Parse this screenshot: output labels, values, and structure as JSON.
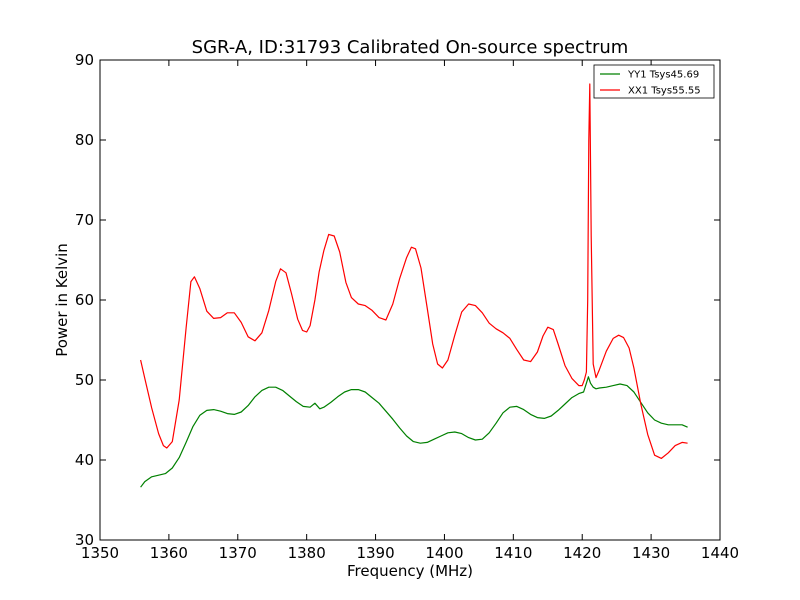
{
  "chart_data": {
    "type": "line",
    "title": "SGR-A, ID:31793 Calibrated On-source spectrum",
    "xlabel": "Frequency (MHz)",
    "ylabel": "Power in Kelvin",
    "xlim": [
      1350,
      1440
    ],
    "ylim": [
      30,
      90
    ],
    "xticks": [
      "1350",
      "1360",
      "1370",
      "1380",
      "1390",
      "1400",
      "1410",
      "1420",
      "1430",
      "1440"
    ],
    "yticks": [
      "30",
      "40",
      "50",
      "60",
      "70",
      "80",
      "90"
    ],
    "grid": false,
    "legend_position": "top-right",
    "series": [
      {
        "name": "YY1 Tsys45.69",
        "color": "#008000",
        "x": [
          1355.9,
          1356.5,
          1357.5,
          1358.5,
          1359.5,
          1360.5,
          1361.5,
          1362.5,
          1363.5,
          1364.5,
          1365.5,
          1366.5,
          1367.5,
          1368.5,
          1369.5,
          1370.5,
          1371.5,
          1372.5,
          1373.5,
          1374.5,
          1375.5,
          1376.5,
          1377.5,
          1378.5,
          1379.5,
          1380.5,
          1381.2,
          1381.9,
          1382.5,
          1383.5,
          1384.5,
          1385.5,
          1386.5,
          1387.5,
          1388.5,
          1389.5,
          1390.5,
          1391.5,
          1392.5,
          1393.5,
          1394.5,
          1395.5,
          1396.5,
          1397.5,
          1398.5,
          1399.5,
          1400.5,
          1401.5,
          1402.5,
          1403.5,
          1404.5,
          1405.5,
          1406.5,
          1407.5,
          1408.5,
          1409.5,
          1410.5,
          1411.5,
          1412.5,
          1413.5,
          1414.5,
          1415.5,
          1416.5,
          1417.5,
          1418.5,
          1419.5,
          1420.2,
          1420.6,
          1420.9,
          1421.2,
          1421.6,
          1422.0,
          1422.5,
          1423.5,
          1424.5,
          1425.5,
          1426.5,
          1427.5,
          1428.5,
          1429.5,
          1430.5,
          1431.5,
          1432.5,
          1433.5,
          1434.5,
          1435.3
        ],
        "y": [
          36.6,
          37.3,
          37.9,
          38.1,
          38.3,
          39.0,
          40.3,
          42.2,
          44.2,
          45.6,
          46.2,
          46.3,
          46.1,
          45.8,
          45.7,
          46.0,
          46.8,
          47.9,
          48.7,
          49.1,
          49.1,
          48.7,
          48.0,
          47.3,
          46.7,
          46.6,
          47.1,
          46.4,
          46.6,
          47.2,
          47.9,
          48.5,
          48.8,
          48.8,
          48.5,
          47.8,
          47.1,
          46.1,
          45.1,
          44.0,
          43.0,
          42.3,
          42.1,
          42.2,
          42.6,
          43.0,
          43.4,
          43.5,
          43.3,
          42.8,
          42.5,
          42.6,
          43.4,
          44.6,
          45.9,
          46.6,
          46.7,
          46.3,
          45.7,
          45.3,
          45.2,
          45.5,
          46.2,
          47.0,
          47.8,
          48.3,
          48.5,
          49.6,
          50.4,
          49.6,
          49.1,
          48.9,
          49.0,
          49.1,
          49.3,
          49.5,
          49.3,
          48.5,
          47.2,
          45.9,
          45.0,
          44.6,
          44.4,
          44.4,
          44.4,
          44.1
        ]
      },
      {
        "name": "XX1 Tsys55.55",
        "color": "#ff0000",
        "x": [
          1355.9,
          1356.5,
          1357.5,
          1358.5,
          1359.2,
          1359.7,
          1360.5,
          1361.5,
          1362.5,
          1363.2,
          1363.7,
          1364.5,
          1365.5,
          1366.5,
          1367.5,
          1368.5,
          1369.5,
          1370.5,
          1371.5,
          1372.5,
          1373.5,
          1374.5,
          1375.5,
          1376.2,
          1377.0,
          1377.8,
          1378.7,
          1379.4,
          1380.0,
          1380.5,
          1381.2,
          1381.8,
          1382.5,
          1383.2,
          1384.0,
          1384.8,
          1385.7,
          1386.5,
          1387.5,
          1388.5,
          1389.5,
          1390.5,
          1391.5,
          1392.5,
          1393.5,
          1394.5,
          1395.2,
          1395.8,
          1396.6,
          1397.5,
          1398.3,
          1399.0,
          1399.7,
          1400.5,
          1401.5,
          1402.5,
          1403.5,
          1404.5,
          1405.5,
          1406.5,
          1407.5,
          1408.5,
          1409.5,
          1410.5,
          1411.5,
          1412.5,
          1413.5,
          1414.3,
          1415.0,
          1415.8,
          1416.5,
          1417.5,
          1418.5,
          1419.5,
          1420.0,
          1420.3,
          1420.6,
          1420.8,
          1420.95,
          1421.1,
          1421.3,
          1421.6,
          1422.0,
          1422.5,
          1423.5,
          1424.5,
          1425.3,
          1426.0,
          1426.8,
          1427.5,
          1428.5,
          1429.5,
          1430.5,
          1431.5,
          1432.5,
          1433.5,
          1434.5,
          1435.3
        ],
        "y": [
          52.5,
          50.2,
          46.5,
          43.3,
          41.8,
          41.5,
          42.3,
          47.5,
          56.5,
          62.3,
          62.9,
          61.4,
          58.6,
          57.7,
          57.8,
          58.4,
          58.4,
          57.2,
          55.4,
          54.9,
          55.9,
          58.7,
          62.3,
          63.9,
          63.4,
          60.8,
          57.6,
          56.2,
          56.0,
          56.8,
          60.0,
          63.5,
          66.2,
          68.2,
          68.0,
          66.0,
          62.2,
          60.3,
          59.5,
          59.3,
          58.7,
          57.8,
          57.5,
          59.5,
          62.7,
          65.3,
          66.6,
          66.4,
          64.0,
          59.0,
          54.5,
          52.0,
          51.5,
          52.5,
          55.6,
          58.5,
          59.5,
          59.3,
          58.4,
          57.1,
          56.4,
          55.9,
          55.2,
          53.8,
          52.5,
          52.3,
          53.5,
          55.5,
          56.6,
          56.3,
          54.5,
          51.8,
          50.2,
          49.3,
          49.3,
          50.0,
          51.0,
          60.0,
          80.0,
          87.0,
          68.0,
          52.0,
          50.3,
          51.3,
          53.6,
          55.2,
          55.6,
          55.3,
          54.0,
          51.5,
          47.0,
          43.2,
          40.6,
          40.2,
          40.9,
          41.8,
          42.2,
          42.1
        ]
      }
    ]
  }
}
